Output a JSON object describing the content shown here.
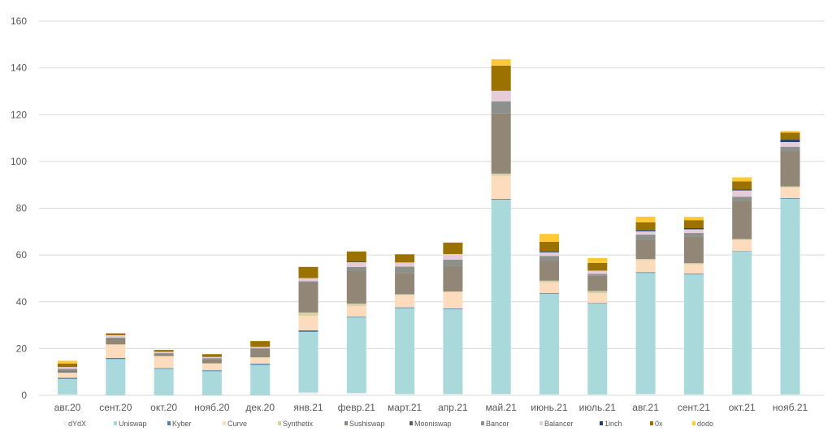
{
  "chart_data": {
    "type": "bar",
    "stacked": true,
    "title": "",
    "xlabel": "",
    "ylabel": "",
    "ylim": [
      0,
      160
    ],
    "yticks": [
      0,
      20,
      40,
      60,
      80,
      100,
      120,
      140,
      160
    ],
    "grid": true,
    "legend_position": "bottom",
    "categories": [
      "авг.20",
      "сент.20",
      "окт.20",
      "нояб.20",
      "дек.20",
      "янв.21",
      "февр.21",
      "март.21",
      "апр.21",
      "май.21",
      "июнь.21",
      "июль.21",
      "авг.21",
      "сент.21",
      "окт.21",
      "нояб.21"
    ],
    "series": [
      {
        "name": "dYdX",
        "color": "#f0f0f0",
        "values": [
          0.3,
          0,
          0,
          0,
          0,
          1.2,
          1,
          0.5,
          0.5,
          0.5,
          0.3,
          0.3,
          0.5,
          0.3,
          0.3,
          0.3
        ]
      },
      {
        "name": "Uniswap",
        "color": "#a9d9db",
        "values": [
          6.7,
          15.5,
          11.3,
          10.3,
          13,
          25.9,
          32.3,
          36.8,
          36.3,
          83.2,
          43.1,
          38.9,
          51.8,
          51.5,
          61.2,
          83.7
        ]
      },
      {
        "name": "Kyber",
        "color": "#4f7fa8",
        "values": [
          0.5,
          0.5,
          0.3,
          0.4,
          0.5,
          0.7,
          0.3,
          0.3,
          0.3,
          0.3,
          0.3,
          0.2,
          0.3,
          0.3,
          0.2,
          0.3
        ]
      },
      {
        "name": "Curve",
        "color": "#fcdcbd",
        "values": [
          2,
          5.5,
          5,
          2.8,
          2.5,
          6.2,
          4.6,
          5.3,
          7,
          9.8,
          4.5,
          4.2,
          5.1,
          3.9,
          4.8,
          4.5
        ]
      },
      {
        "name": "Synthetix",
        "color": "#d5d2a4",
        "values": [
          0.3,
          0.3,
          0.2,
          0.2,
          0.3,
          1.4,
          1,
          0.3,
          0.3,
          1,
          0.8,
          1,
          0.6,
          0.5,
          0.3,
          0.5
        ]
      },
      {
        "name": "Sushiswap",
        "color": "#928676",
        "values": [
          0,
          2.5,
          1,
          1.8,
          3.5,
          12.9,
          13.9,
          9.1,
          10.8,
          25.7,
          8.6,
          6.5,
          8.3,
          11.2,
          16.3,
          15
        ]
      },
      {
        "name": "Mooniswap",
        "color": "#5f5a63",
        "values": [
          0.5,
          0.1,
          0,
          0,
          0,
          0.2,
          0,
          0,
          0,
          0,
          0,
          0,
          0,
          0,
          0,
          0
        ]
      },
      {
        "name": "Bancor",
        "color": "#8c918c",
        "values": [
          1,
          0.3,
          0.3,
          0.4,
          0.3,
          0.3,
          1.8,
          2.7,
          2.8,
          5.2,
          2,
          0.8,
          2.1,
          1.7,
          1.8,
          2
        ]
      },
      {
        "name": "Balancer",
        "color": "#e6cbd9",
        "values": [
          0.8,
          1,
          0.5,
          0.5,
          0.6,
          1.3,
          2,
          1.8,
          2.4,
          4.5,
          1.5,
          1.4,
          1.4,
          1.6,
          2.7,
          2
        ]
      },
      {
        "name": "1inch",
        "color": "#1f3f6e",
        "values": [
          0,
          0,
          0,
          0,
          0,
          0,
          0.2,
          0,
          0,
          0,
          0.3,
          0,
          0.4,
          0.5,
          0.4,
          1
        ]
      },
      {
        "name": "0x",
        "color": "#9b7200",
        "values": [
          1.5,
          0.8,
          0.8,
          1.2,
          2.5,
          4.8,
          4.4,
          3.5,
          4.9,
          10.8,
          4.2,
          3.3,
          3.5,
          3.4,
          3.5,
          3
        ]
      },
      {
        "name": "dodo",
        "color": "#ffc936",
        "values": [
          1.2,
          0,
          0,
          0,
          0,
          0,
          0,
          0,
          0,
          2.7,
          3.4,
          2.1,
          2.4,
          1.4,
          1.7,
          0.7
        ]
      }
    ]
  }
}
